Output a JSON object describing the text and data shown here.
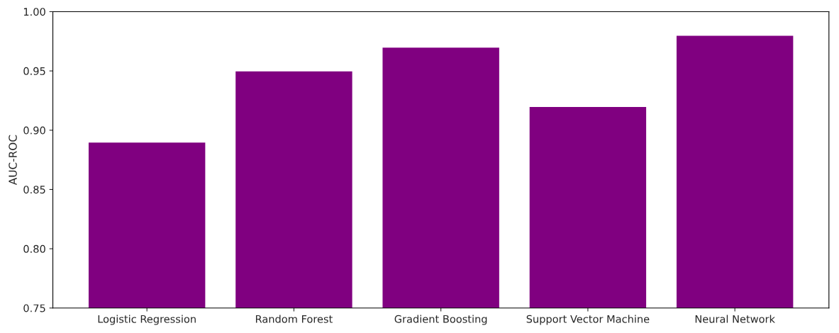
{
  "chart_data": {
    "type": "bar",
    "ylabel": "AUC-ROC",
    "categories": [
      "Logistic Regression",
      "Random Forest",
      "Gradient Boosting",
      "Support Vector Machine",
      "Neural Network"
    ],
    "values": [
      0.89,
      0.95,
      0.97,
      0.92,
      0.98
    ],
    "color": "#800080",
    "ylim": [
      0.75,
      1.0
    ],
    "yticks": [
      {
        "value": 0.75,
        "label": "0.75"
      },
      {
        "value": 0.8,
        "label": "0.80"
      },
      {
        "value": 0.85,
        "label": "0.85"
      },
      {
        "value": 0.9,
        "label": "0.90"
      },
      {
        "value": 0.95,
        "label": "0.95"
      },
      {
        "value": 1.0,
        "label": "1.00"
      }
    ],
    "grid": false
  }
}
